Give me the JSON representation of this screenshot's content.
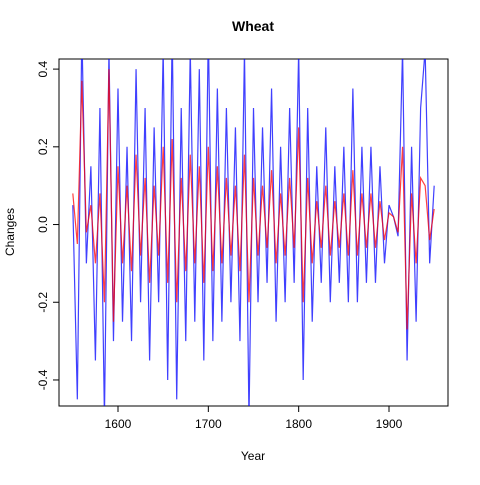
{
  "chart_data": {
    "type": "line",
    "title": "Wheat",
    "x_label": "Year",
    "y_label": "Changes",
    "x": [
      1550,
      1555,
      1560,
      1565,
      1570,
      1575,
      1580,
      1585,
      1590,
      1595,
      1600,
      1605,
      1610,
      1615,
      1620,
      1625,
      1630,
      1635,
      1640,
      1645,
      1650,
      1655,
      1660,
      1665,
      1670,
      1675,
      1680,
      1685,
      1690,
      1695,
      1700,
      1705,
      1710,
      1715,
      1720,
      1725,
      1730,
      1735,
      1740,
      1745,
      1750,
      1755,
      1760,
      1765,
      1770,
      1775,
      1780,
      1785,
      1790,
      1795,
      1800,
      1805,
      1810,
      1815,
      1820,
      1825,
      1830,
      1835,
      1840,
      1845,
      1850,
      1855,
      1860,
      1865,
      1870,
      1875,
      1880,
      1885,
      1890,
      1895,
      1900,
      1905,
      1910,
      1915,
      1920,
      1925,
      1930,
      1935,
      1940,
      1945,
      1950
    ],
    "series": [
      {
        "name": "blue",
        "color": "#0000ff",
        "values": [
          0.05,
          -0.45,
          0.5,
          -0.1,
          0.15,
          -0.35,
          0.3,
          -0.5,
          0.45,
          -0.3,
          0.35,
          -0.25,
          0.2,
          -0.3,
          0.4,
          -0.2,
          0.3,
          -0.35,
          0.25,
          -0.2,
          0.45,
          -0.4,
          0.5,
          -0.45,
          0.3,
          -0.3,
          0.45,
          -0.25,
          0.4,
          -0.35,
          0.5,
          -0.3,
          0.35,
          -0.25,
          0.3,
          -0.2,
          0.25,
          -0.3,
          0.45,
          -0.5,
          0.3,
          -0.2,
          0.25,
          -0.15,
          0.35,
          -0.25,
          0.2,
          -0.2,
          0.3,
          -0.15,
          0.45,
          -0.4,
          0.3,
          -0.25,
          0.15,
          -0.15,
          0.25,
          -0.2,
          0.15,
          -0.15,
          0.2,
          -0.2,
          0.35,
          -0.2,
          0.2,
          -0.15,
          0.2,
          -0.15,
          0.15,
          -0.1,
          0.05,
          0.02,
          -0.03,
          0.45,
          -0.35,
          0.2,
          -0.25,
          0.3,
          0.45,
          -0.1,
          0.1
        ]
      },
      {
        "name": "red",
        "color": "#ff0000",
        "values": [
          0.08,
          -0.05,
          0.37,
          -0.02,
          0.05,
          -0.1,
          0.08,
          -0.2,
          0.4,
          -0.25,
          0.15,
          -0.1,
          0.1,
          -0.12,
          0.18,
          -0.08,
          0.12,
          -0.15,
          0.1,
          -0.08,
          0.2,
          -0.15,
          0.22,
          -0.2,
          0.12,
          -0.12,
          0.18,
          -0.1,
          0.15,
          -0.15,
          0.2,
          -0.12,
          0.15,
          -0.1,
          0.12,
          -0.08,
          0.1,
          -0.12,
          0.18,
          -0.2,
          0.12,
          -0.08,
          0.1,
          -0.06,
          0.14,
          -0.1,
          0.08,
          -0.08,
          0.12,
          -0.06,
          0.25,
          -0.2,
          0.12,
          -0.1,
          0.06,
          -0.06,
          0.1,
          -0.08,
          0.06,
          -0.06,
          0.08,
          -0.08,
          0.14,
          -0.08,
          0.08,
          -0.06,
          0.08,
          -0.06,
          0.06,
          -0.04,
          0.03,
          0.02,
          -0.02,
          0.2,
          -0.27,
          0.08,
          -0.1,
          0.12,
          0.1,
          -0.04,
          0.04
        ]
      }
    ],
    "xlim": [
      1534.7,
      1965.3
    ],
    "ylim": [
      -0.467,
      0.426
    ],
    "xticks": [
      1600,
      1700,
      1800,
      1900
    ],
    "yticks": [
      -0.4,
      -0.2,
      {
        "value": 0,
        "label": "0.0"
      },
      0.2,
      0.4
    ]
  }
}
